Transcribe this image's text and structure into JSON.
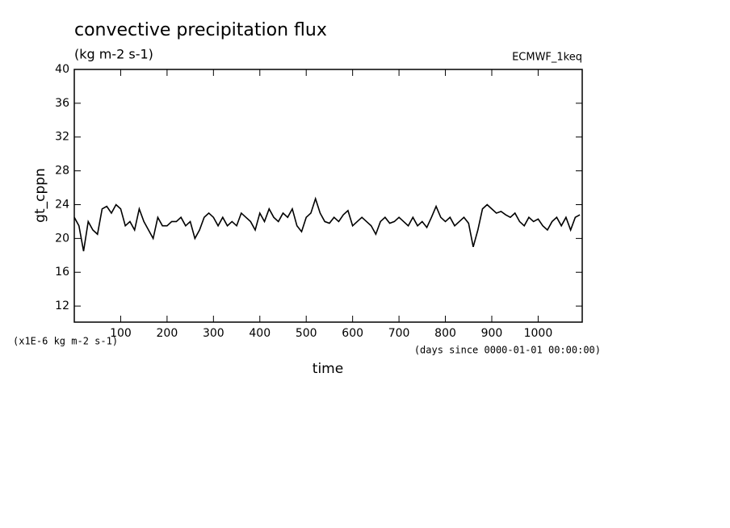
{
  "chart_data": {
    "type": "line",
    "title": "convective precipitation flux",
    "subtitle": "(kg m-2 s-1)",
    "annotation": "ECMWF_1keq",
    "y_label": "gt_cppn",
    "y_unit_label": "(x1E-6 kg m-2 s-1)",
    "x_label": "time",
    "x_unit_label": "(days since 0000-01-01 00:00:00)",
    "xlim": [
      0,
      1095
    ],
    "xticks": [
      100,
      200,
      300,
      400,
      500,
      600,
      700,
      800,
      900,
      1000
    ],
    "ylim": [
      10.1,
      40
    ],
    "yticks": [
      12,
      16,
      20,
      24,
      28,
      32,
      36,
      40
    ],
    "x": [
      0,
      10,
      20,
      30,
      40,
      50,
      60,
      70,
      80,
      90,
      100,
      110,
      120,
      130,
      140,
      150,
      160,
      170,
      180,
      190,
      200,
      210,
      220,
      230,
      240,
      250,
      260,
      270,
      280,
      290,
      300,
      310,
      320,
      330,
      340,
      350,
      360,
      370,
      380,
      390,
      400,
      410,
      420,
      430,
      440,
      450,
      460,
      470,
      480,
      490,
      500,
      510,
      520,
      530,
      540,
      550,
      560,
      570,
      580,
      590,
      600,
      610,
      620,
      630,
      640,
      650,
      660,
      670,
      680,
      690,
      700,
      710,
      720,
      730,
      740,
      750,
      760,
      770,
      780,
      790,
      800,
      810,
      820,
      830,
      840,
      850,
      860,
      870,
      880,
      890,
      900,
      910,
      920,
      930,
      940,
      950,
      960,
      970,
      980,
      990,
      1000,
      1010,
      1020,
      1030,
      1040,
      1050,
      1060,
      1070,
      1080,
      1090
    ],
    "series": [
      {
        "name": "gt_cppn",
        "color": "#000000",
        "values": [
          22.5,
          21.5,
          18.5,
          22,
          21,
          20.5,
          23.5,
          23.8,
          23,
          24,
          23.5,
          21.5,
          22,
          21,
          23.5,
          22,
          21,
          20,
          22.5,
          21.5,
          21.5,
          22,
          22,
          22.5,
          21.5,
          22,
          20,
          21,
          22.5,
          23,
          22.5,
          21.5,
          22.5,
          21.5,
          22,
          21.5,
          23,
          22.5,
          22,
          21,
          23,
          22,
          23.5,
          22.5,
          22,
          23,
          22.5,
          23.5,
          21.5,
          20.8,
          22.5,
          23,
          24.7,
          23,
          22,
          21.8,
          22.5,
          22,
          22.8,
          23.3,
          21.5,
          22,
          22.5,
          22,
          21.5,
          20.5,
          22,
          22.5,
          21.8,
          22,
          22.5,
          22,
          21.5,
          22.5,
          21.5,
          22,
          21.3,
          22.5,
          23.8,
          22.5,
          22,
          22.5,
          21.5,
          22,
          22.5,
          21.8,
          19,
          21,
          23.5,
          24,
          23.5,
          23,
          23.2,
          22.8,
          22.5,
          23,
          22,
          21.5,
          22.5,
          22,
          22.3,
          21.5,
          21,
          22,
          22.5,
          21.5,
          22.5,
          21,
          22.5,
          22.8
        ]
      }
    ]
  }
}
